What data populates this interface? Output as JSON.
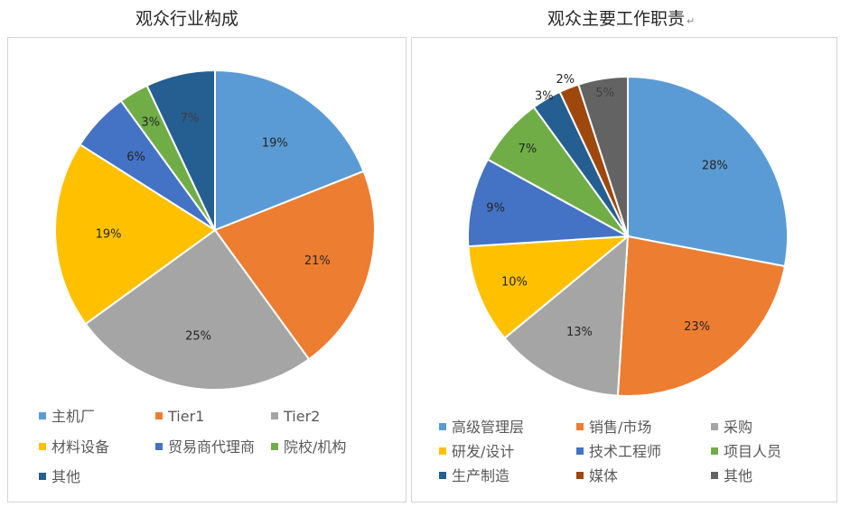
{
  "chart_data": [
    {
      "type": "pie",
      "title": "观众行业构成",
      "categories": [
        "主机厂",
        "Tier1",
        "Tier2",
        "材料设备",
        "贸易商代理商",
        "院校/机构",
        "其他"
      ],
      "values": [
        19,
        21,
        25,
        19,
        6,
        3,
        7
      ],
      "labels": [
        "19%",
        "21%",
        "25%",
        "19%",
        "6%",
        "3%",
        "7%"
      ],
      "colors": [
        "#5B9BD5",
        "#ED7D31",
        "#A5A5A5",
        "#FFC000",
        "#4472C4",
        "#70AD47",
        "#255E91"
      ],
      "legend": "bottom"
    },
    {
      "type": "pie",
      "title": "观众主要工作职责",
      "title_mark": "↵",
      "categories": [
        "高级管理层",
        "销售/市场",
        "采购",
        "研发/设计",
        "技术工程师",
        "项目人员",
        "生产制造",
        "媒体",
        "其他"
      ],
      "values": [
        28,
        23,
        13,
        10,
        9,
        7,
        3,
        2,
        5
      ],
      "labels": [
        "28%",
        "23%",
        "13%",
        "10%",
        "9%",
        "7%",
        "3%",
        "2%",
        "5%"
      ],
      "colors": [
        "#5B9BD5",
        "#ED7D31",
        "#A5A5A5",
        "#FFC000",
        "#4472C4",
        "#70AD47",
        "#255E91",
        "#9E480E",
        "#636363"
      ],
      "legend": "bottom"
    }
  ]
}
